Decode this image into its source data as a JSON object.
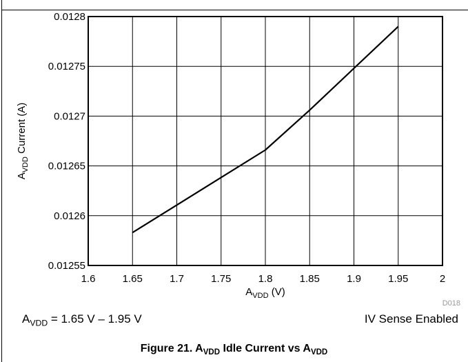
{
  "chart_data": {
    "type": "line",
    "xlabel_main": "A",
    "xlabel_sub": "VDD",
    "xlabel_tail": " (V)",
    "ylabel_main": "A",
    "ylabel_sub": "VDD",
    "ylabel_tail": " Current (A)",
    "xlim": [
      1.6,
      2.0
    ],
    "ylim": [
      0.01255,
      0.0128
    ],
    "x_ticks": [
      "1.6",
      "1.65",
      "1.7",
      "1.75",
      "1.8",
      "1.85",
      "1.9",
      "1.95",
      "2"
    ],
    "y_ticks": [
      "0.01255",
      "0.0126",
      "0.01265",
      "0.0127",
      "0.01275",
      "0.0128"
    ],
    "grid": true,
    "series": [
      {
        "x": [
          1.65,
          1.8,
          1.85,
          1.95
        ],
        "y": [
          0.012583,
          0.012666,
          0.012706,
          0.01279
        ],
        "color": "#000000"
      }
    ],
    "code_label": "D018"
  },
  "conditions": {
    "left_main": "A",
    "left_sub": "VDD",
    "left_tail": " = 1.65 V – 1.95 V",
    "right": "IV Sense Enabled"
  },
  "caption": {
    "prefix": "Figure 21. A",
    "sub1": "VDD",
    "middle": " Idle Current vs A",
    "sub2": "VDD"
  }
}
